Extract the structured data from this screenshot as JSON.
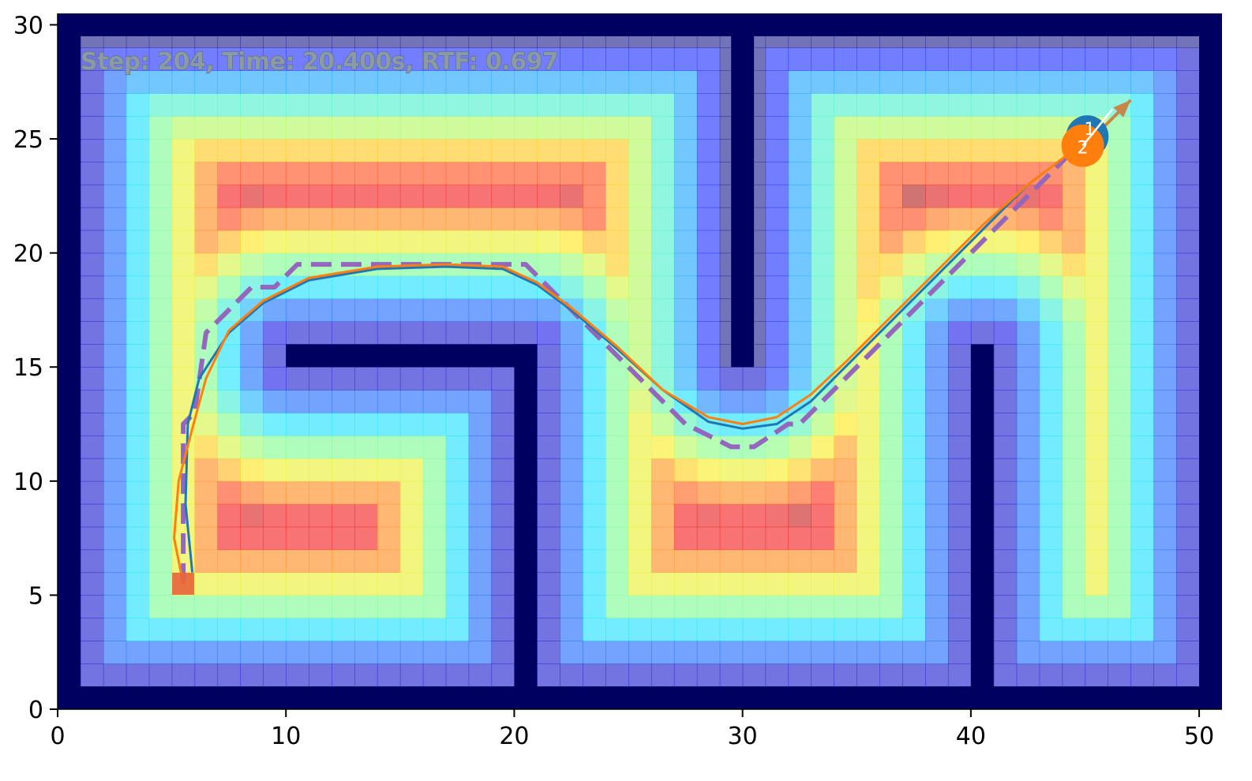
{
  "chart_data": {
    "type": "heatmap",
    "title": "",
    "xlabel": "",
    "ylabel": "",
    "xlim": [
      0,
      51
    ],
    "ylim": [
      0,
      30.5
    ],
    "x_ticks": [
      0,
      10,
      20,
      30,
      40,
      50
    ],
    "y_ticks": [
      0,
      5,
      10,
      15,
      20,
      25,
      30
    ],
    "x_tick_labels": [
      "0",
      "10",
      "20",
      "30",
      "40",
      "50"
    ],
    "y_tick_labels": [
      "0",
      "5",
      "10",
      "15",
      "20",
      "25",
      "30"
    ],
    "grid": false,
    "colormap": "jet",
    "status_text": "Step: 204, Time: 20.400s, RTF: 0.697",
    "walls": [
      {
        "x": [
          0,
          51
        ],
        "y": [
          0,
          1
        ]
      },
      {
        "x": [
          0,
          51
        ],
        "y": [
          29.5,
          30.5
        ]
      },
      {
        "x": [
          0,
          1
        ],
        "y": [
          0,
          30.5
        ]
      },
      {
        "x": [
          50,
          51
        ],
        "y": [
          0,
          30.5
        ]
      },
      {
        "x": [
          29.5,
          30.5
        ],
        "y": [
          15,
          30.5
        ]
      },
      {
        "x": [
          10,
          21
        ],
        "y": [
          15,
          16
        ]
      },
      {
        "x": [
          20,
          21
        ],
        "y": [
          0,
          16
        ]
      },
      {
        "x": [
          40,
          41
        ],
        "y": [
          0,
          16
        ]
      }
    ],
    "start": {
      "x": 5.5,
      "y": 5.5
    },
    "goal_arrow": {
      "x_from": 45.3,
      "y_from": 25,
      "x_to": 47,
      "y_to": 26.7
    },
    "robots": [
      {
        "label": "1",
        "x": 45.1,
        "y": 25.1,
        "color": "#1f77b4"
      },
      {
        "label": "2",
        "x": 44.9,
        "y": 24.7,
        "color": "#ff7f0e"
      }
    ],
    "series": [
      {
        "style": "dashed",
        "color": "#9467bd",
        "x": [
          5.5,
          5.5,
          6.0,
          6.5,
          7.5,
          8.5,
          9.5,
          10.5,
          20.5,
          21.5,
          23.5,
          25.5,
          27.5,
          29.5,
          30.5,
          32.0,
          32.5,
          34.5,
          36.5,
          38.5,
          40.5,
          42.5,
          44.5,
          45.0
        ],
        "y": [
          5.5,
          12.5,
          13.0,
          16.5,
          17.5,
          18.5,
          18.5,
          19.5,
          19.5,
          18.5,
          16.5,
          14.5,
          12.5,
          11.5,
          11.5,
          12.5,
          12.5,
          14.5,
          16.5,
          18.5,
          20.5,
          22.5,
          24.5,
          25.0
        ]
      },
      {
        "style": "solid",
        "color": "#1f77b4",
        "x": [
          5.9,
          5.6,
          5.7,
          6.2,
          7.5,
          9.0,
          11.0,
          14.0,
          17.0,
          19.5,
          21.0,
          22.5,
          24.5,
          26.5,
          28.5,
          30.0,
          31.5,
          33.0,
          34.5,
          36.5,
          38.5,
          40.5,
          42.5,
          44.5,
          45.1
        ],
        "y": [
          6.0,
          9.0,
          12.5,
          14.5,
          16.5,
          17.8,
          18.8,
          19.3,
          19.4,
          19.3,
          18.6,
          17.5,
          15.8,
          14.0,
          12.6,
          12.3,
          12.5,
          13.5,
          15.0,
          17.0,
          19.0,
          21.0,
          23.0,
          24.5,
          25.1
        ]
      },
      {
        "style": "solid",
        "color": "#ff7f0e",
        "x": [
          5.5,
          5.1,
          5.3,
          5.9,
          6.5,
          7.5,
          9.0,
          11.0,
          14.0,
          17.0,
          19.5,
          21.0,
          22.5,
          24.5,
          26.5,
          28.5,
          30.0,
          31.5,
          33.0,
          34.5,
          36.5,
          38.5,
          40.5,
          42.5,
          44.5,
          44.9
        ],
        "y": [
          5.5,
          7.5,
          10.0,
          12.3,
          14.5,
          16.6,
          17.9,
          18.9,
          19.4,
          19.5,
          19.4,
          18.7,
          17.6,
          15.9,
          14.0,
          12.8,
          12.5,
          12.8,
          13.8,
          15.2,
          17.2,
          19.2,
          21.2,
          23.0,
          24.5,
          24.7
        ]
      }
    ]
  }
}
